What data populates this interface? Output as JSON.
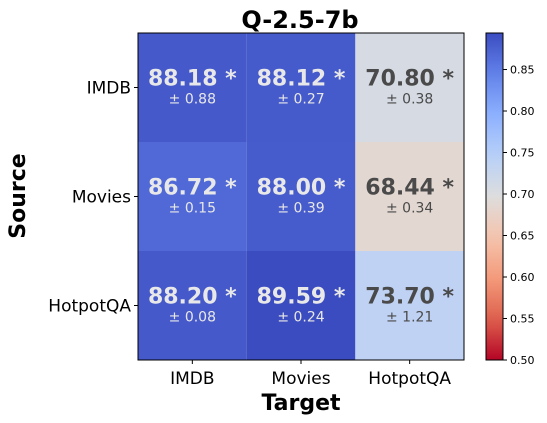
{
  "chart_data": {
    "type": "heatmap",
    "title": "Q-2.5-7b",
    "xlabel": "Target",
    "ylabel": "Source",
    "x_categories": [
      "IMDB",
      "Movies",
      "HotpotQA"
    ],
    "y_categories": [
      "IMDB",
      "Movies",
      "HotpotQA"
    ],
    "values": [
      [
        88.18,
        88.12,
        70.8
      ],
      [
        86.72,
        88.0,
        68.44
      ],
      [
        88.2,
        89.59,
        73.7
      ]
    ],
    "errors": [
      [
        0.88,
        0.27,
        0.38
      ],
      [
        0.15,
        0.39,
        0.34
      ],
      [
        0.08,
        0.24,
        1.21
      ]
    ],
    "cell_text": [
      [
        "88.18 *",
        "88.12 *",
        "70.80 *"
      ],
      [
        "86.72 *",
        "88.00 *",
        "68.44 *"
      ],
      [
        "88.20 *",
        "89.59 *",
        "73.70 *"
      ]
    ],
    "cell_subtext": [
      [
        "± 0.88",
        "± 0.27",
        "± 0.38"
      ],
      [
        "± 0.15",
        "± 0.39",
        "± 0.34"
      ],
      [
        "± 0.08",
        "± 0.24",
        "± 1.21"
      ]
    ],
    "colormap": "coolwarm",
    "colorbar": {
      "vmin": 0.5,
      "vmax": 0.894,
      "ticks": [
        0.5,
        0.55,
        0.6,
        0.65,
        0.7,
        0.75,
        0.8,
        0.85
      ],
      "tick_labels": [
        "0.50",
        "0.55",
        "0.60",
        "0.65",
        "0.70",
        "0.75",
        "0.80",
        "0.85"
      ]
    },
    "text_colors": {
      "dark_cell": "#e8e8e8",
      "light_cell": "#4a4a4a"
    }
  }
}
